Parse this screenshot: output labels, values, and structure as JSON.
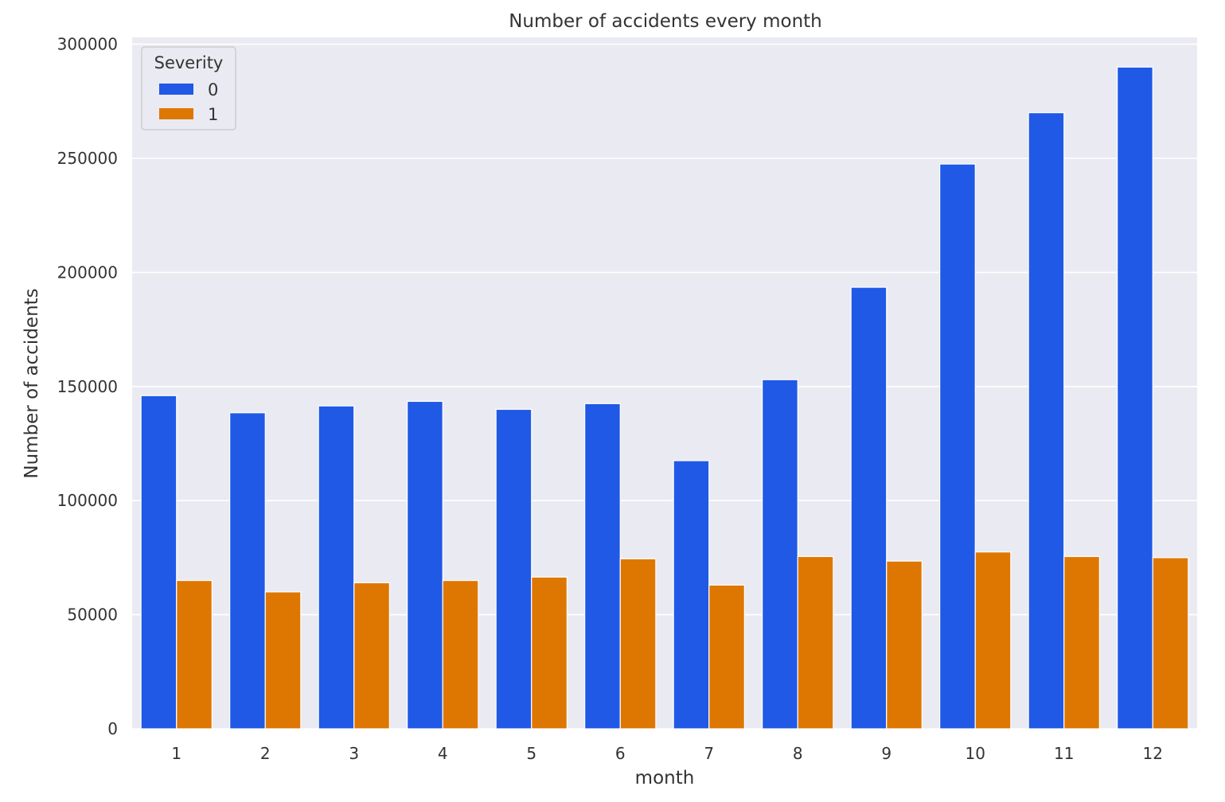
{
  "chart_data": {
    "type": "bar",
    "title": "Number of accidents every month",
    "xlabel": "month",
    "ylabel": "Number of accidents",
    "categories": [
      "1",
      "2",
      "3",
      "4",
      "5",
      "6",
      "7",
      "8",
      "9",
      "10",
      "11",
      "12"
    ],
    "series": [
      {
        "name": "0",
        "color": "#1f59e5",
        "values": [
          146000,
          138500,
          141500,
          143500,
          140000,
          142500,
          117500,
          153000,
          193500,
          247500,
          270000,
          290000
        ]
      },
      {
        "name": "1",
        "color": "#de7702",
        "values": [
          65000,
          60000,
          64000,
          65000,
          66500,
          74500,
          63000,
          75500,
          73500,
          77500,
          75500,
          75000
        ]
      }
    ],
    "legend": {
      "title": "Severity",
      "position": "top-left"
    },
    "ylim": [
      0,
      303000
    ],
    "yticks": [
      0,
      50000,
      100000,
      150000,
      200000,
      250000,
      300000
    ],
    "grid": true,
    "background": "#eaeaf2"
  }
}
